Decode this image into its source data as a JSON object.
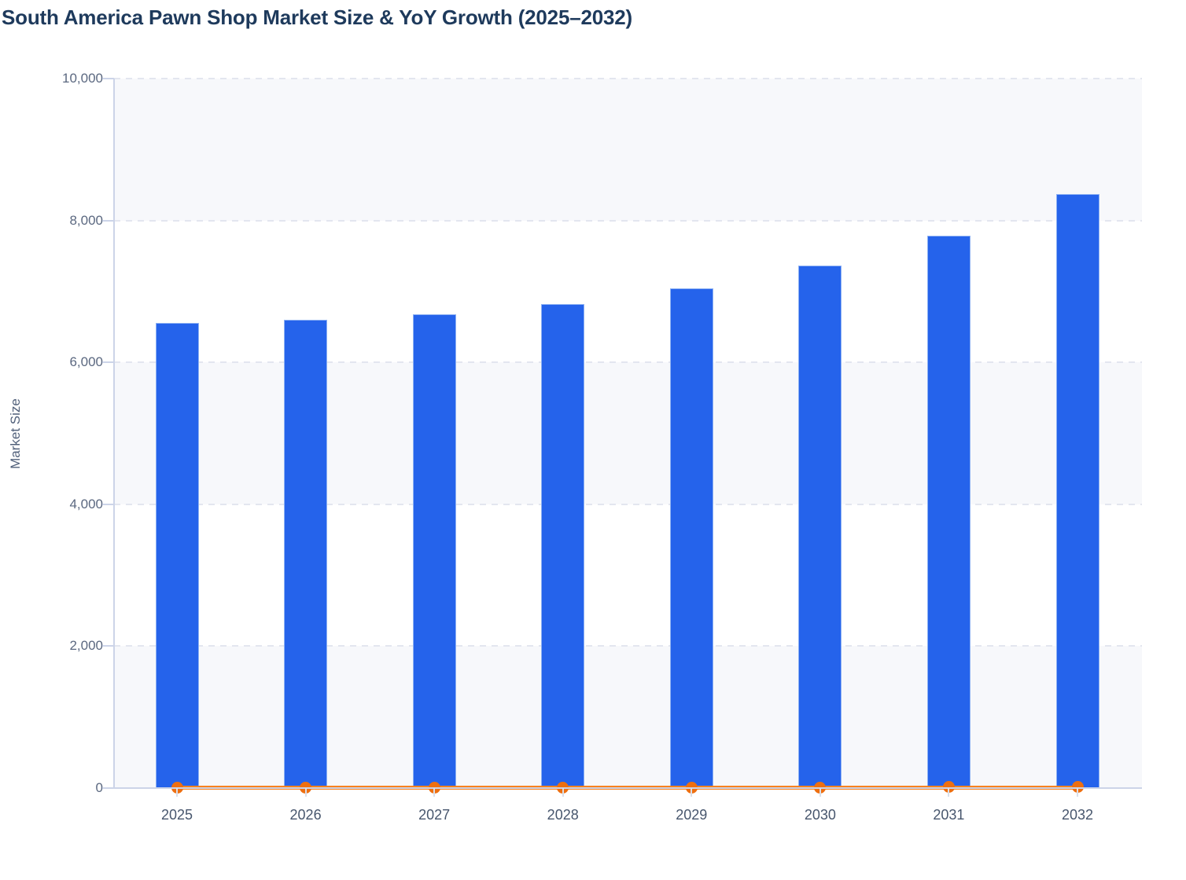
{
  "chart_data": {
    "type": "bar",
    "title": "South America Pawn Shop Market Size & YoY Growth (2025–2032)",
    "xlabel": "",
    "ylabel": "Market Size",
    "categories": [
      "2025",
      "2026",
      "2027",
      "2028",
      "2029",
      "2030",
      "2031",
      "2032"
    ],
    "series": [
      {
        "name": "Market Size",
        "type": "bar",
        "color": "#2563eb",
        "values": [
          6560,
          6600,
          6680,
          6820,
          7040,
          7360,
          7780,
          8370
        ]
      },
      {
        "name": "YoY Growth",
        "type": "line",
        "color": "#f9821d",
        "marker_color": "#ee6f10",
        "values": [
          0.0,
          0.6,
          1.2,
          2.1,
          3.2,
          4.5,
          5.7,
          7.6
        ]
      }
    ],
    "ylim": [
      0,
      10000
    ],
    "yticks": {
      "values": [
        0,
        2000,
        4000,
        6000,
        8000,
        10000
      ],
      "labels": [
        "0",
        "2,000",
        "4,000",
        "6,000",
        "8,000",
        "10,000"
      ]
    },
    "grid": {
      "horizontal": "dashed",
      "color": "#e3e6ef"
    },
    "plot_bands": {
      "style": "alternating-horizontal",
      "shaded": [
        [
          0,
          2000
        ],
        [
          4000,
          6000
        ],
        [
          8000,
          10000
        ]
      ],
      "color": "#f7f8fb"
    },
    "legend": "none"
  },
  "colors": {
    "bar": "#2563eb",
    "bar_border": "#9fb9f2",
    "line": "#f9821d",
    "marker": "#ee6f10",
    "title": "#1e3a5c",
    "axis_line": "#ccd4e8",
    "gridline": "#e3e6ef",
    "band": "#f7f8fb",
    "ytick_label": "#5b6880",
    "xtick_label": "#47566d"
  }
}
